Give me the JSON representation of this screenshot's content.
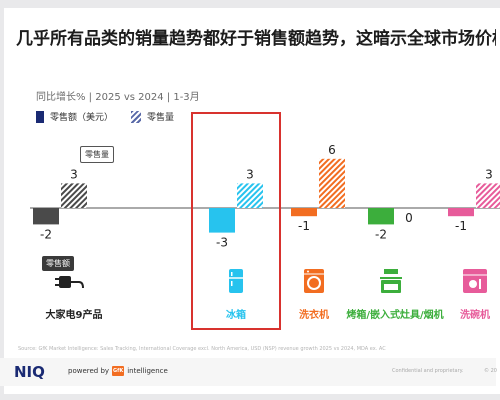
{
  "title": "几乎所有品类的销量趋势都好于销售额趋势，这暗示全球市场价格在",
  "subtitle": "同比增长% | 2025 vs 2024 | 1-3月",
  "legend": {
    "sales_value": "零售额（美元）",
    "sales_volume": "零售量"
  },
  "callouts": {
    "volume": "零售量",
    "value": "零售额"
  },
  "colors": {
    "major_appliances": "#4a4a4a",
    "fridge": "#27c3ee",
    "washer": "#f26d21",
    "oven": "#3cae3c",
    "dishwasher": "#e75b9a",
    "highlight": "#d8322e"
  },
  "icons": [
    "plug-icon",
    "fridge-icon",
    "washing-machine-icon",
    "oven-hob-icon",
    "dishwasher-icon"
  ],
  "chart_data": {
    "type": "bar",
    "categories": [
      "大家电9产品",
      "冰箱",
      "洗衣机",
      "烤箱/嵌入式灶具/烟机",
      "洗碗机"
    ],
    "series": [
      {
        "name": "零售额（美元）",
        "values": [
          -2,
          -3,
          -1,
          -2,
          -1
        ]
      },
      {
        "name": "零售量",
        "values": [
          3,
          3,
          6,
          0,
          3
        ]
      }
    ],
    "ylabel": "同比增长%",
    "ylim": [
      -3,
      6
    ]
  },
  "footer": {
    "source": "Source: GfK Market Intelligence: Sales Tracking, International Coverage excl. North America, USD (NSP) revenue growth 2025 vs 2024,  MDA ex. AC",
    "logo": "NIQ",
    "powered_by": "powered by",
    "gfk": "GfK",
    "intelligence": "intelligence",
    "confidential": "Confidential and proprietary.",
    "page": "© 20"
  }
}
